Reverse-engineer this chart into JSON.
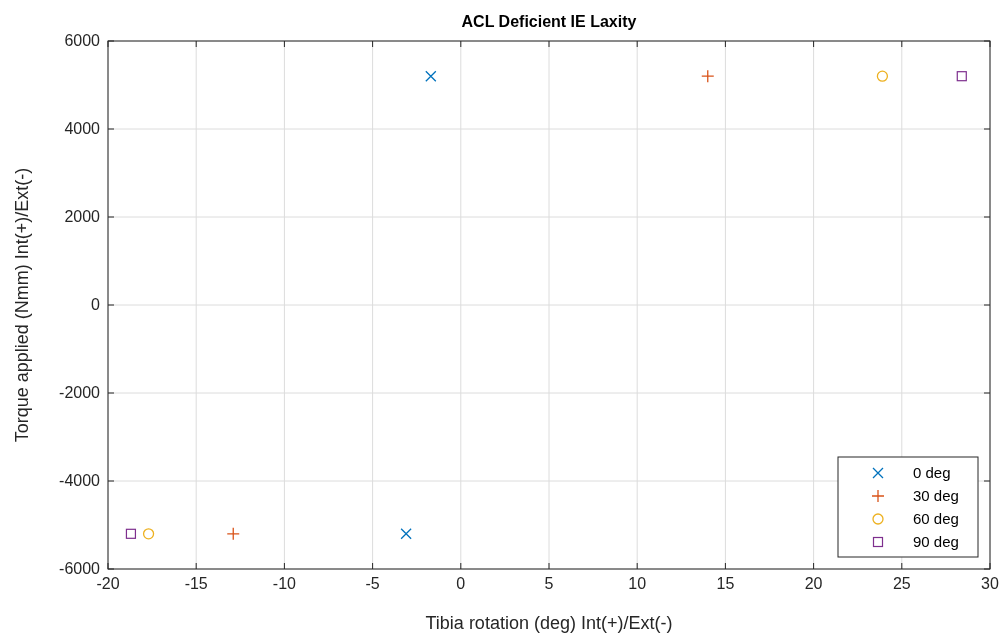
{
  "chart_data": {
    "type": "scatter",
    "title": "ACL Deficient IE Laxity",
    "xlabel": "Tibia rotation (deg) Int(+)/Ext(-)",
    "ylabel": "Torque applied (Nmm) Int(+)/Ext(-)",
    "xlim": [
      -20,
      30
    ],
    "xticks": [
      -20,
      -15,
      -10,
      -5,
      0,
      5,
      10,
      15,
      20,
      25,
      30
    ],
    "ylim": [
      -6000,
      6000
    ],
    "yticks": [
      -6000,
      -4000,
      -2000,
      0,
      2000,
      4000,
      6000
    ],
    "grid": true,
    "legend": "bottom right",
    "series": [
      {
        "name": "0 deg",
        "color": "#0072bd",
        "marker": "x",
        "x": [
          -1.7,
          -3.1
        ],
        "values": [
          5200,
          -5200
        ]
      },
      {
        "name": "30 deg",
        "color": "#d95319",
        "marker": "cross",
        "x": [
          14,
          -12.9
        ],
        "values": [
          5200,
          -5200
        ]
      },
      {
        "name": "60 deg",
        "color": "#edb120",
        "marker": "circle",
        "x": [
          23.9,
          -17.7
        ],
        "values": [
          5200,
          -5200
        ]
      },
      {
        "name": "90 deg",
        "color": "#7e2f8e",
        "marker": "square",
        "x": [
          28.4,
          -18.7
        ],
        "values": [
          5200,
          -5200
        ]
      }
    ]
  }
}
